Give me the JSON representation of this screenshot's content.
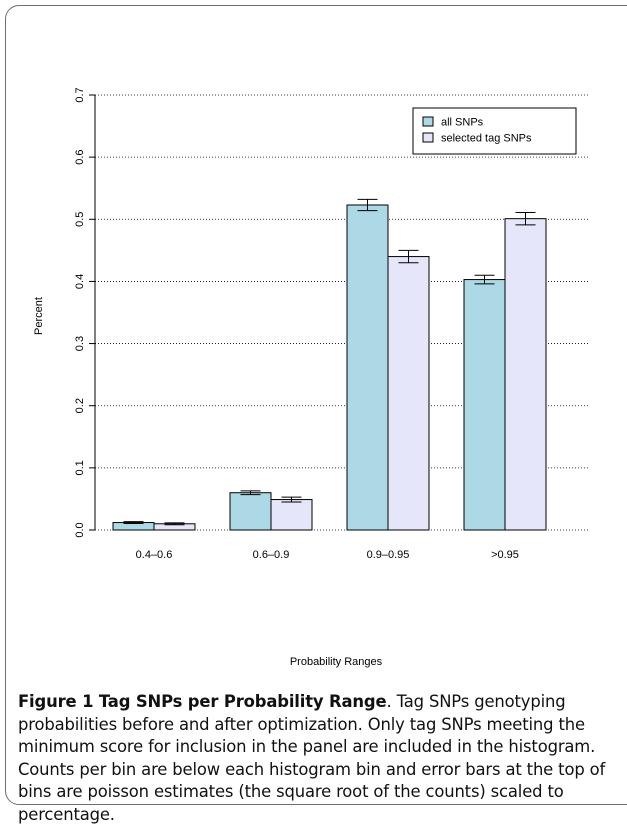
{
  "chart_data": {
    "type": "bar",
    "xlabel": "Probability Ranges",
    "ylabel": "Percent",
    "ylim": [
      0,
      0.7
    ],
    "yticks": [
      "0.0",
      "0.1",
      "0.2",
      "0.3",
      "0.4",
      "0.5",
      "0.6",
      "0.7"
    ],
    "categories": [
      "0.4–0.6",
      "0.6–0.9",
      "0.9–0.95",
      ">0.95"
    ],
    "grid": "horizontal dotted",
    "legend_position": "top-right",
    "series": [
      {
        "name": "all SNPs",
        "color": "#add8e6",
        "values": [
          0.012,
          0.06,
          0.523,
          0.403
        ],
        "errors": [
          0.0015,
          0.003,
          0.009,
          0.007
        ]
      },
      {
        "name": "selected tag SNPs",
        "color": "#e6e6fa",
        "values": [
          0.01,
          0.049,
          0.44,
          0.501
        ],
        "errors": [
          0.0015,
          0.004,
          0.01,
          0.01
        ]
      }
    ]
  },
  "caption": {
    "label": "Figure 1 Tag SNPs per Probability Range",
    "text": ". Tag SNPs genotyping probabilities before and after optimization. Only tag SNPs meeting the minimum score for inclusion in the panel are included in the histogram. Counts per bin are below each histogram bin and error bars at the top of bins are poisson estimates (the square root of the counts) scaled to percentage."
  }
}
